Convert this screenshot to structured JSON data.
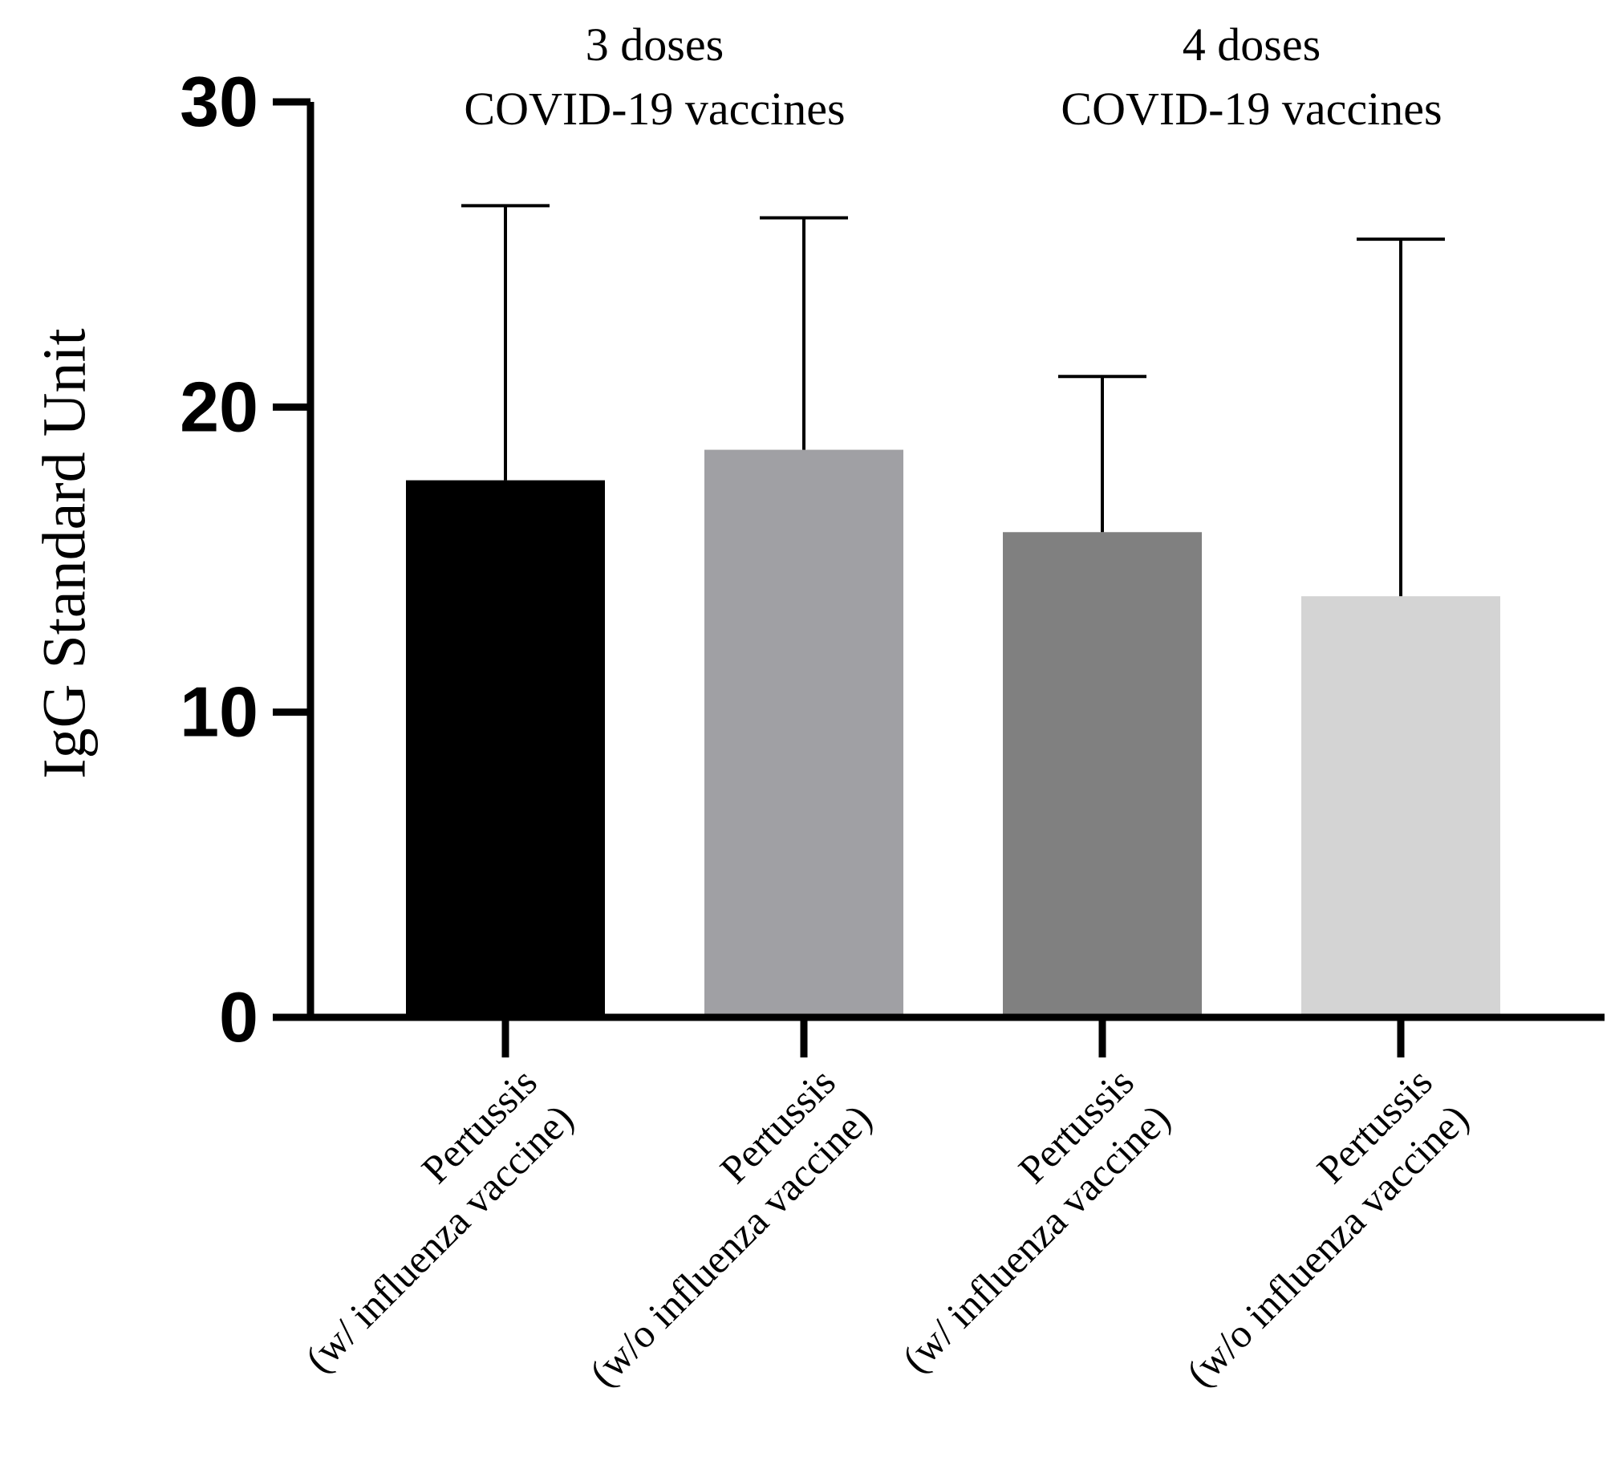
{
  "chart_data": {
    "type": "bar",
    "ylabel": "IgG Standard Unit",
    "ylim": [
      0,
      30
    ],
    "yticks": [
      0,
      10,
      20,
      30
    ],
    "error_bars": "upper",
    "groups": [
      {
        "line1": "3 doses",
        "line2": "COVID-19 vaccines",
        "categories": [
          0,
          1
        ]
      },
      {
        "line1": "4 doses",
        "line2": "COVID-19 vaccines",
        "categories": [
          2,
          3
        ]
      }
    ],
    "categories": [
      {
        "line1": "Pertussis",
        "line2": "(w/ influenza vaccine)",
        "value": 17.6,
        "error_upper": 26.6,
        "color": "#000000"
      },
      {
        "line1": "Pertussis",
        "line2": "(w/o influenza vaccine)",
        "value": 18.6,
        "error_upper": 26.2,
        "color": "#A0A0A4"
      },
      {
        "line1": "Pertussis",
        "line2": "(w/ influenza vaccine)",
        "value": 15.9,
        "error_upper": 21.0,
        "color": "#808080"
      },
      {
        "line1": "Pertussis",
        "line2": "(w/o influenza vaccine)",
        "value": 13.8,
        "error_upper": 25.5,
        "color": "#D4D4D4"
      }
    ]
  }
}
